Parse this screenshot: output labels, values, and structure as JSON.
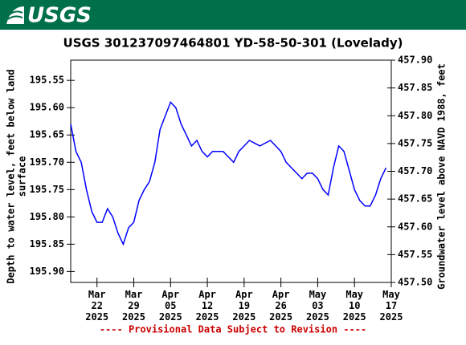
{
  "header": {
    "logo": "USGS"
  },
  "chart_data": {
    "type": "line",
    "title": "USGS 301237097464801 YD-58-50-301 (Lovelady)",
    "ylabel": [
      "Depth to water level, feet below land",
      "surface"
    ],
    "y2label": "Groundwater level above NAVD 1988, feet",
    "footer": "---- Provisional Data Subject to Revision ----",
    "x": [
      "2025-03-17",
      "2025-03-18",
      "2025-03-19",
      "2025-03-20",
      "2025-03-21",
      "2025-03-22",
      "2025-03-23",
      "2025-03-24",
      "2025-03-25",
      "2025-03-26",
      "2025-03-27",
      "2025-03-28",
      "2025-03-29",
      "2025-03-30",
      "2025-03-31",
      "2025-04-01",
      "2025-04-02",
      "2025-04-03",
      "2025-04-04",
      "2025-04-05",
      "2025-04-06",
      "2025-04-07",
      "2025-04-08",
      "2025-04-09",
      "2025-04-10",
      "2025-04-11",
      "2025-04-12",
      "2025-04-13",
      "2025-04-14",
      "2025-04-15",
      "2025-04-16",
      "2025-04-17",
      "2025-04-18",
      "2025-04-19",
      "2025-04-20",
      "2025-04-21",
      "2025-04-22",
      "2025-04-23",
      "2025-04-24",
      "2025-04-25",
      "2025-04-26",
      "2025-04-27",
      "2025-04-28",
      "2025-04-29",
      "2025-04-30",
      "2025-05-01",
      "2025-05-02",
      "2025-05-03",
      "2025-05-04",
      "2025-05-05",
      "2025-05-06",
      "2025-05-07",
      "2025-05-08",
      "2025-05-09",
      "2025-05-10",
      "2025-05-11",
      "2025-05-12",
      "2025-05-13",
      "2025-05-14",
      "2025-05-15",
      "2025-05-16"
    ],
    "series": [
      {
        "name": "Depth to water level",
        "color": "#0000ff",
        "values": [
          195.63,
          195.68,
          195.7,
          195.75,
          195.79,
          195.81,
          195.81,
          195.785,
          195.8,
          195.83,
          195.85,
          195.82,
          195.81,
          195.77,
          195.75,
          195.735,
          195.7,
          195.64,
          195.615,
          195.59,
          195.6,
          195.63,
          195.65,
          195.67,
          195.66,
          195.68,
          195.69,
          195.68,
          195.68,
          195.68,
          195.69,
          195.7,
          195.68,
          195.67,
          195.66,
          195.665,
          195.67,
          195.665,
          195.66,
          195.67,
          195.68,
          195.7,
          195.71,
          195.72,
          195.73,
          195.72,
          195.72,
          195.73,
          195.75,
          195.76,
          195.71,
          195.67,
          195.68,
          195.715,
          195.75,
          195.77,
          195.78,
          195.78,
          195.76,
          195.73,
          195.71
        ]
      }
    ],
    "xlim": [
      "2025-03-17",
      "2025-05-17"
    ],
    "xticks": [
      {
        "value": "2025-03-22",
        "label": "Mar 22 2025"
      },
      {
        "value": "2025-03-29",
        "label": "Mar 29 2025"
      },
      {
        "value": "2025-04-05",
        "label": "Apr 05 2025"
      },
      {
        "value": "2025-04-12",
        "label": "Apr 12 2025"
      },
      {
        "value": "2025-04-19",
        "label": "Apr 19 2025"
      },
      {
        "value": "2025-04-26",
        "label": "Apr 26 2025"
      },
      {
        "value": "2025-05-03",
        "label": "May 03 2025"
      },
      {
        "value": "2025-05-10",
        "label": "May 10 2025"
      },
      {
        "value": "2025-05-17",
        "label": "May 17 2025"
      }
    ],
    "ylim": [
      195.513,
      195.92
    ],
    "y_inverted": true,
    "yticks": [
      195.55,
      {
        "value": 195.6,
        "label": "195.60"
      },
      195.65,
      {
        "value": 195.7,
        "label": "195.70"
      },
      195.75,
      {
        "value": 195.8,
        "label": "195.80"
      },
      195.85,
      {
        "value": 195.9,
        "label": "195.90"
      }
    ],
    "y2lim": [
      457.5,
      457.9
    ],
    "y2ticks": [
      {
        "value": 457.5,
        "label": "457.50"
      },
      457.55,
      {
        "value": 457.6,
        "label": "457.60"
      },
      457.65,
      {
        "value": 457.7,
        "label": "457.70"
      },
      457.75,
      {
        "value": 457.8,
        "label": "457.80"
      },
      457.85,
      {
        "value": 457.9,
        "label": "457.90"
      }
    ]
  }
}
